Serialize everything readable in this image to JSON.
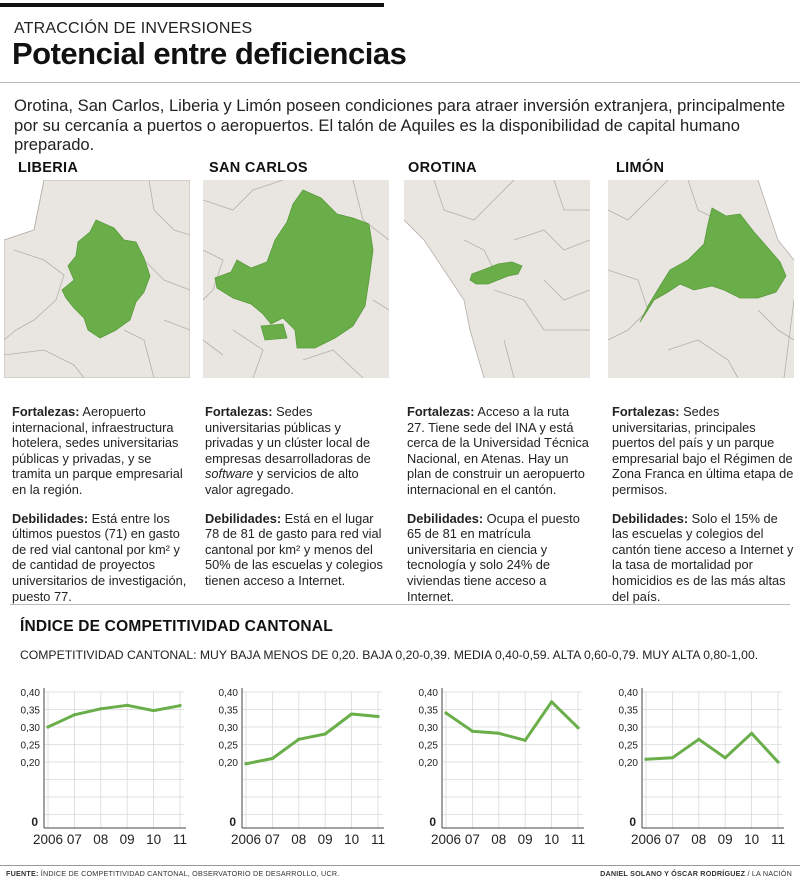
{
  "header": {
    "kicker": "ATRACCIÓN DE INVERSIONES",
    "title": "Potencial entre deficiencias",
    "intro": "Orotina, San Carlos, Liberia y Limón poseen condiciones para atraer inversión extranjera, principalmente por su cercanía a puertos o aeropuertos. El talón de Aquiles es la disponibilidad de capital humano preparado."
  },
  "colors": {
    "accent": "#6aae4a",
    "map_bg": "#e9e5e0",
    "map_line": "#b4b0aa",
    "grid": "#d9d9d9"
  },
  "regions": [
    {
      "name": "LIBERIA",
      "strengths_label": "Fortalezas:",
      "strengths": " Aeropuerto internacional, infraestructura hotelera, sedes universitarias públicas y privadas, y se tramita un parque empresarial en la región.",
      "weaknesses_label": "Debilidades:",
      "weaknesses": " Está entre los últimos puestos (71) en gasto de red vial cantonal por km² y de cantidad de proyectos universitarios de investigación, puesto 77."
    },
    {
      "name": "SAN CARLOS",
      "strengths_label": "Fortalezas:",
      "strengths_a": " Sedes universitarias públicas y privadas y un clúster local de empresas desarrolladoras de ",
      "strengths_em": "software",
      "strengths_b": " y servicios de alto valor agregado.",
      "weaknesses_label": "Debilidades:",
      "weaknesses": " Está en el lugar 78 de 81 de gasto para red vial cantonal por km² y menos del 50% de las escuelas y colegios tienen acceso a Internet."
    },
    {
      "name": "OROTINA",
      "strengths_label": "Fortalezas:",
      "strengths": " Acceso a la ruta 27. Tiene sede del INA y está cerca de la Universidad Técnica Nacional, en Atenas. Hay un plan de construir un aeropuerto internacional en el cantón.",
      "weaknesses_label": "Debilidades:",
      "weaknesses": " Ocupa el puesto 65 de 81 en matrícula universitaria en ciencia y tecnología y solo 24% de viviendas tiene acceso a Internet."
    },
    {
      "name": "LIMÓN",
      "strengths_label": "Fortalezas:",
      "strengths": " Sedes universitarias, principales puertos del país y un parque empresarial bajo el Régimen de Zona Franca en última etapa de permisos.",
      "weaknesses_label": "Debilidades:",
      "weaknesses": " Solo el 15% de las escuelas y colegios del cantón tiene acceso a Internet y la tasa de mortalidad por homicidios es de las más altas del país."
    }
  ],
  "index_section": {
    "title": "ÍNDICE DE COMPETITIVIDAD CANTONAL",
    "legend": "COMPETITIVIDAD CANTONAL: MUY BAJA MENOS DE 0,20. BAJA 0,20-0,39. MEDIA 0,40-0,59. ALTA 0,60-0,79. MUY ALTA 0,80-1,00."
  },
  "chart_data": [
    {
      "type": "line",
      "region": "LIBERIA",
      "x": [
        "2006",
        "07",
        "08",
        "09",
        "10",
        "11"
      ],
      "values": [
        0.3,
        0.335,
        0.352,
        0.362,
        0.347,
        0.361
      ],
      "ylim": [
        0,
        0.4
      ],
      "yticks": [
        "0",
        "0,20",
        "0,25",
        "0,30",
        "0,35",
        "0,40"
      ],
      "grid": true
    },
    {
      "type": "line",
      "region": "SAN CARLOS",
      "x": [
        "2006",
        "07",
        "08",
        "09",
        "10",
        "11"
      ],
      "values": [
        0.195,
        0.21,
        0.265,
        0.28,
        0.337,
        0.33
      ],
      "ylim": [
        0,
        0.4
      ],
      "yticks": [
        "0",
        "0,20",
        "0,25",
        "0,30",
        "0,35",
        "0,40"
      ],
      "grid": true
    },
    {
      "type": "line",
      "region": "OROTINA",
      "x": [
        "2006",
        "07",
        "08",
        "09",
        "10",
        "11"
      ],
      "values": [
        0.34,
        0.288,
        0.282,
        0.262,
        0.372,
        0.298
      ],
      "ylim": [
        0,
        0.4
      ],
      "yticks": [
        "0",
        "0,20",
        "0,25",
        "0,30",
        "0,35",
        "0,40"
      ],
      "grid": true
    },
    {
      "type": "line",
      "region": "LIMÓN",
      "x": [
        "2006",
        "07",
        "08",
        "09",
        "10",
        "11"
      ],
      "values": [
        0.208,
        0.212,
        0.265,
        0.212,
        0.282,
        0.2
      ],
      "ylim": [
        0,
        0.4
      ],
      "yticks": [
        "0",
        "0,20",
        "0,25",
        "0,30",
        "0,35",
        "0,40"
      ],
      "grid": true
    }
  ],
  "footer": {
    "source_label": "FUENTE:",
    "source": " ÍNDICE DE COMPETITIVIDAD CANTONAL, OBSERVATORIO DE DESARROLLO, UCR.",
    "credit": "DANIEL SOLANO Y ÓSCAR RODRÍGUEZ",
    "credit_suffix": " / LA NACIÓN"
  }
}
